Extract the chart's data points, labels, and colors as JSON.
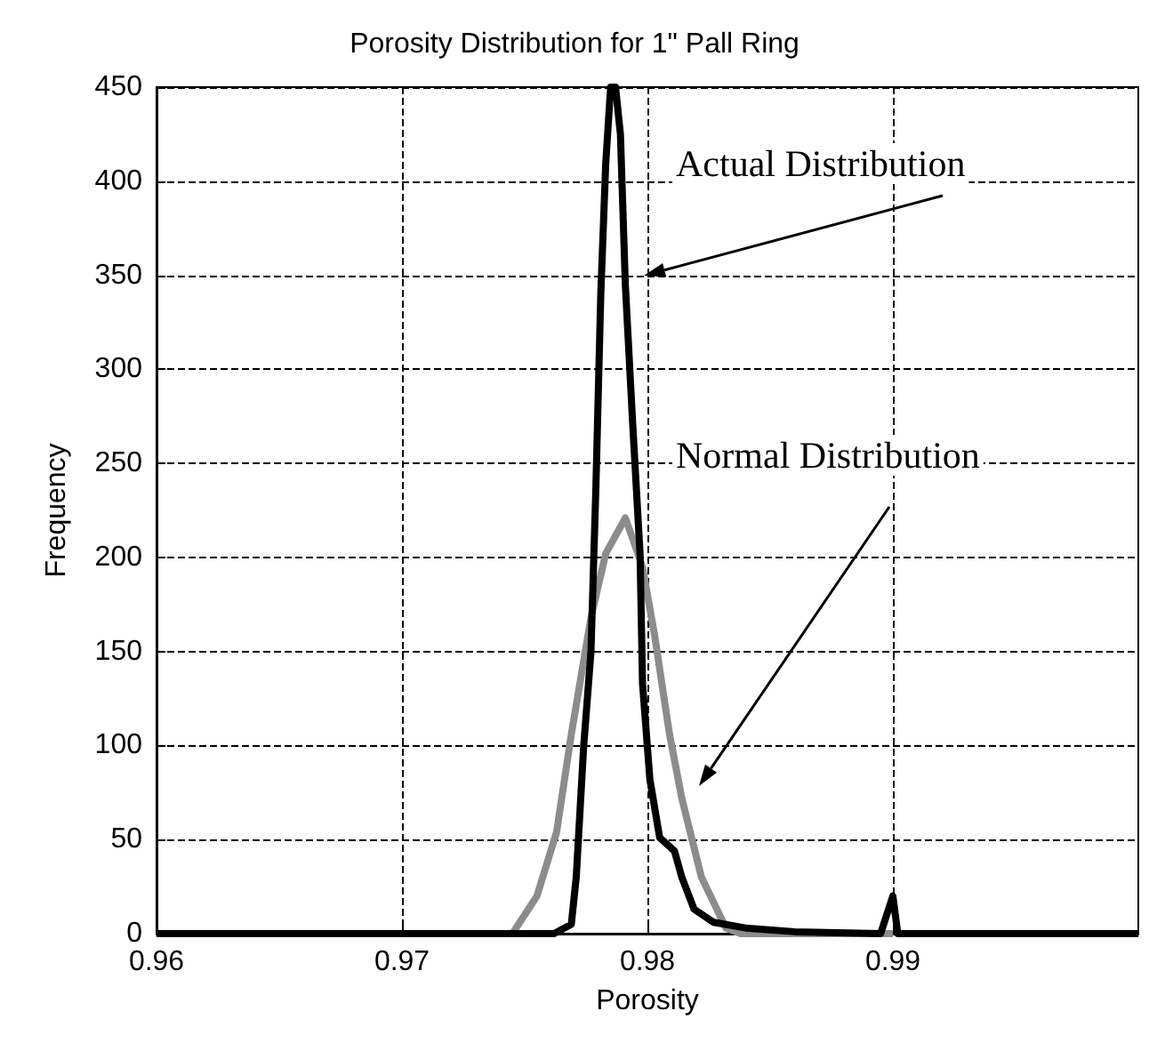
{
  "chart_data": {
    "type": "line",
    "title": "Porosity Distribution for 1\" Pall Ring",
    "xlabel": "Porosity",
    "ylabel": "Frequency",
    "xlim": [
      0.96,
      1.0
    ],
    "xticks": [
      0.96,
      0.97,
      0.98,
      0.99
    ],
    "ylim": [
      0,
      450
    ],
    "yticks": [
      0,
      50,
      100,
      150,
      200,
      250,
      300,
      350,
      400,
      450
    ],
    "grid": true,
    "marker": "none",
    "line_style": "solid",
    "series": [
      {
        "color": "#8c8c8c",
        "x": [
          0.97,
          0.9745,
          0.9755,
          0.9763,
          0.9769,
          0.9777,
          0.9783,
          0.9791,
          0.9798,
          0.9803,
          0.9809,
          0.9814,
          0.9822,
          0.9832,
          0.9838,
          0.99
        ],
        "values": [
          0,
          0,
          20,
          54,
          106,
          168,
          202,
          221,
          195,
          158,
          106,
          72,
          30,
          3,
          0,
          0
        ]
      },
      {
        "color": "#000000",
        "x": [
          0.96,
          0.975,
          0.9762,
          0.9769,
          0.9771,
          0.9774,
          0.9777,
          0.9779,
          0.9781,
          0.9783,
          0.9785,
          0.9786,
          0.9787,
          0.9789,
          0.9791,
          0.9794,
          0.9797,
          0.9798,
          0.9801,
          0.9805,
          0.9811,
          0.9814,
          0.9819,
          0.9827,
          0.984,
          0.986,
          0.9895,
          0.99,
          0.9902,
          1.0
        ],
        "values": [
          0,
          0,
          0,
          5,
          30,
          99,
          150,
          237,
          340,
          409,
          450,
          450,
          450,
          425,
          345,
          271,
          202,
          133,
          82,
          51,
          44,
          30,
          13,
          6,
          3,
          1,
          0,
          20,
          0,
          0
        ]
      }
    ],
    "annotations": [
      "Actual Distribution",
      "Normal Distribution"
    ]
  }
}
